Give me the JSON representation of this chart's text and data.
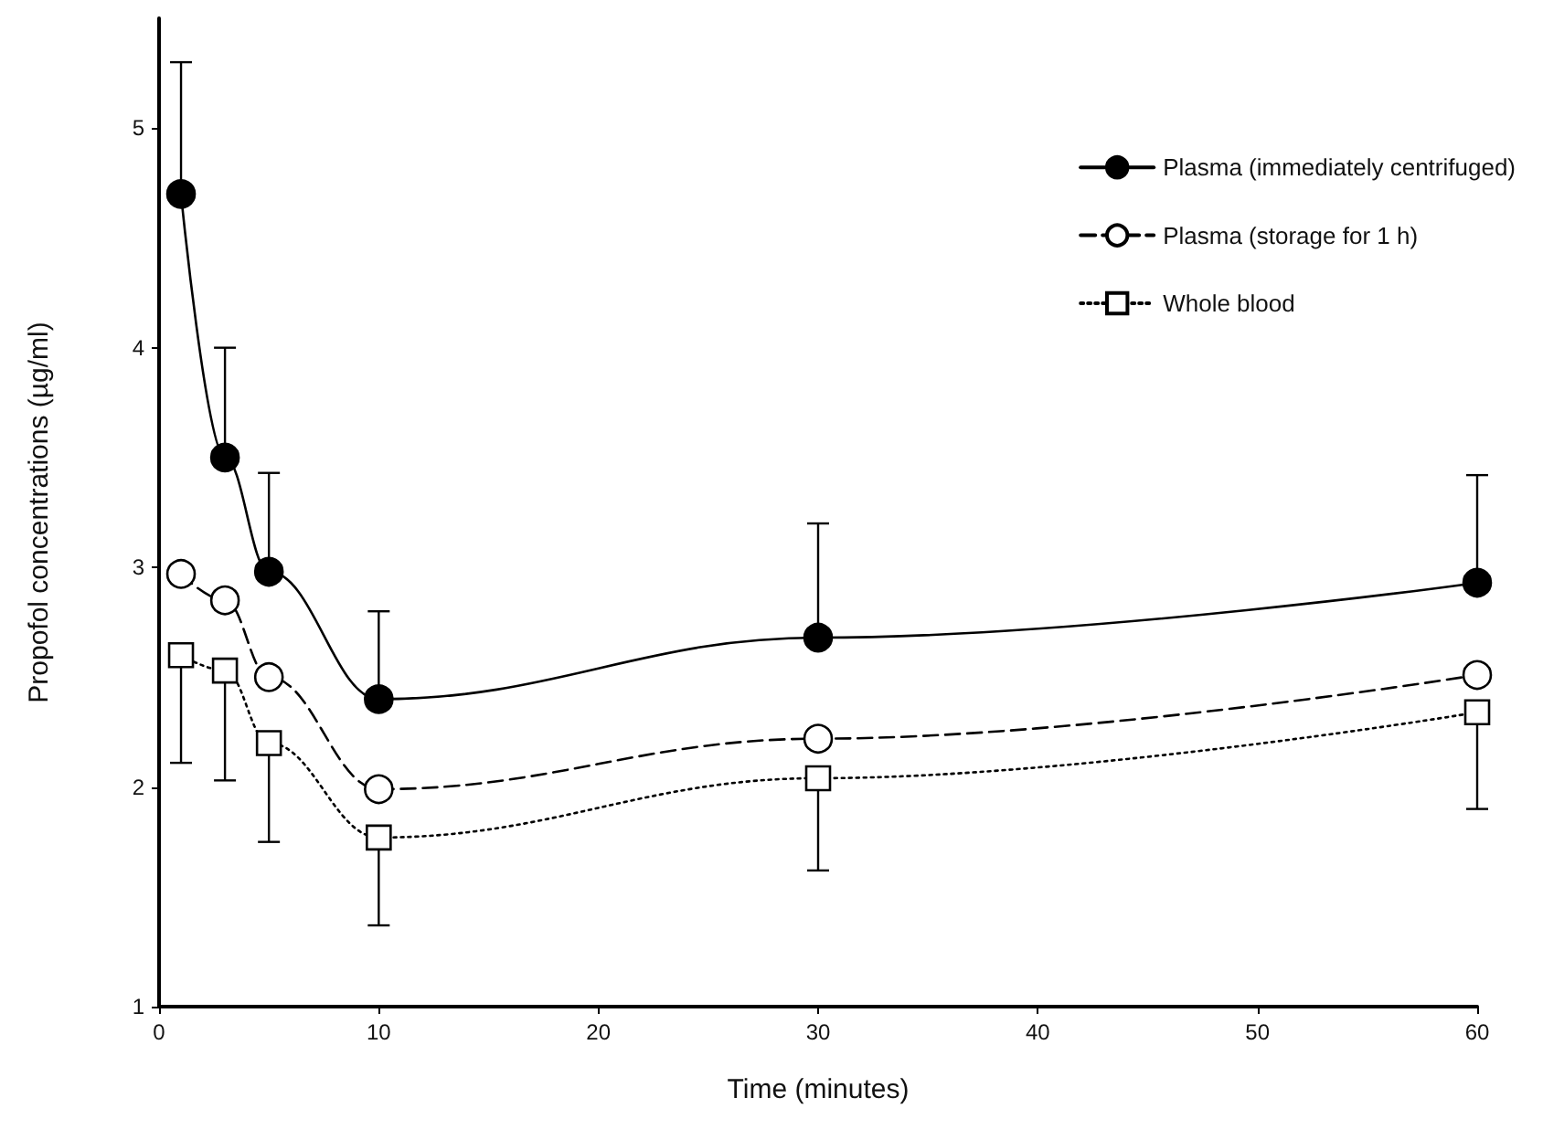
{
  "chart_data": {
    "type": "line",
    "xlabel": "Time (minutes)",
    "ylabel": "Propofol concentrations (µg/ml)",
    "x": [
      1,
      3,
      5,
      10,
      30,
      60
    ],
    "series": [
      {
        "name": "Plasma (immediately centrifuged)",
        "color": "#000000",
        "marker": "circle",
        "line_style": "solid",
        "values": [
          4.7,
          3.5,
          2.98,
          2.4,
          2.68,
          2.93
        ],
        "errors": [
          [
            4.7,
            5.3
          ],
          [
            3.5,
            4.0
          ],
          [
            2.98,
            3.43
          ],
          [
            2.4,
            2.8
          ],
          [
            2.68,
            3.2
          ],
          [
            2.93,
            3.42
          ]
        ]
      },
      {
        "name": "Plasma (storage for 1 h)",
        "color": "#000000",
        "marker": "circle",
        "line_style": "dashed",
        "values": [
          2.97,
          2.85,
          2.5,
          1.99,
          2.22,
          2.51
        ]
      },
      {
        "name": "Whole blood",
        "color": "#000000",
        "marker": "square",
        "line_style": "dotted",
        "values": [
          2.6,
          2.53,
          2.2,
          1.77,
          2.04,
          2.34
        ],
        "errors": [
          [
            2.11,
            2.6
          ],
          [
            2.03,
            2.53
          ],
          [
            1.75,
            2.2
          ],
          [
            1.37,
            1.77
          ],
          [
            1.62,
            2.04
          ],
          [
            1.9,
            2.34
          ]
        ]
      }
    ],
    "xlim": [
      0,
      60
    ],
    "xticks": [
      0,
      10,
      20,
      30,
      40,
      50,
      60
    ],
    "ylim": [
      1,
      5.5
    ],
    "yticks": [
      1,
      2,
      3,
      4,
      5
    ],
    "grid": false,
    "legend": "top right"
  }
}
